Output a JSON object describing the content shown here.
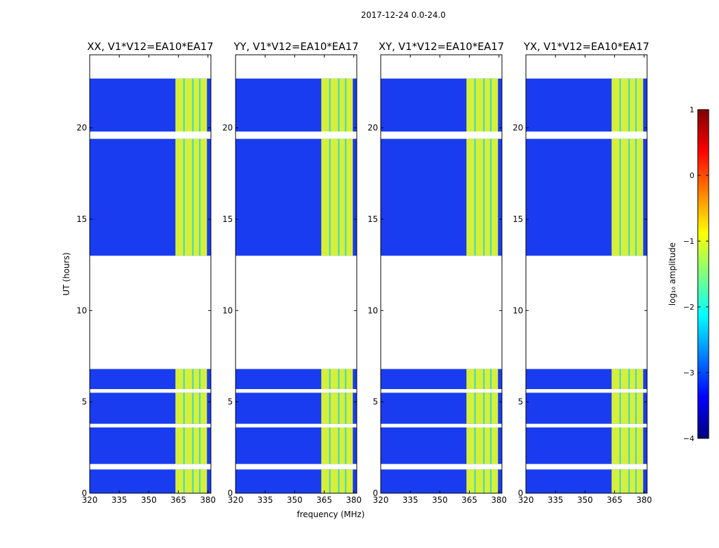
{
  "figure": {
    "suptitle": "2017-12-24 0.0-24.0",
    "ylabel": "UT (hours)",
    "xlabel": "frequency (MHz)"
  },
  "chart_data": {
    "type": "heatmap",
    "x_range": [
      320,
      381.5
    ],
    "y_range": [
      0,
      24
    ],
    "x_ticks": [
      320,
      335,
      350,
      365,
      380
    ],
    "x_tick_labels": [
      "320",
      "335",
      "350",
      "365",
      "380"
    ],
    "y_ticks": [
      0,
      5,
      10,
      15,
      20
    ],
    "y_tick_labels": [
      "0",
      "5",
      "10",
      "15",
      "20"
    ],
    "data_bands_hours": [
      [
        0.0,
        1.3
      ],
      [
        1.6,
        3.6
      ],
      [
        3.8,
        5.5
      ],
      [
        5.7,
        6.8
      ],
      [
        13.0,
        19.4
      ],
      [
        19.8,
        22.7
      ]
    ],
    "strong_signal_band_mhz": [
      363.5,
      379.5
    ],
    "background_level_log10": -3,
    "signal_level_log10": -1,
    "panels": [
      {
        "title": "XX, V1*V12=EA10*EA17"
      },
      {
        "title": "YY, V1*V12=EA10*EA17"
      },
      {
        "title": "XY, V1*V12=EA10*EA17"
      },
      {
        "title": "YX, V1*V12=EA10*EA17"
      }
    ],
    "colorbar": {
      "label": "log₁₀ amplitude",
      "range": [
        -4,
        1
      ],
      "ticks": [
        1,
        0,
        -1,
        -2,
        -3,
        -4
      ],
      "tick_labels": [
        "1",
        "0",
        "−1",
        "−2",
        "−3",
        "−4"
      ],
      "colormap": "jet",
      "colors": [
        "#00007f",
        "#0000ff",
        "#007fff",
        "#00ffff",
        "#7fff7f",
        "#ffff00",
        "#ff7f00",
        "#ff0000",
        "#7f0000"
      ]
    }
  }
}
